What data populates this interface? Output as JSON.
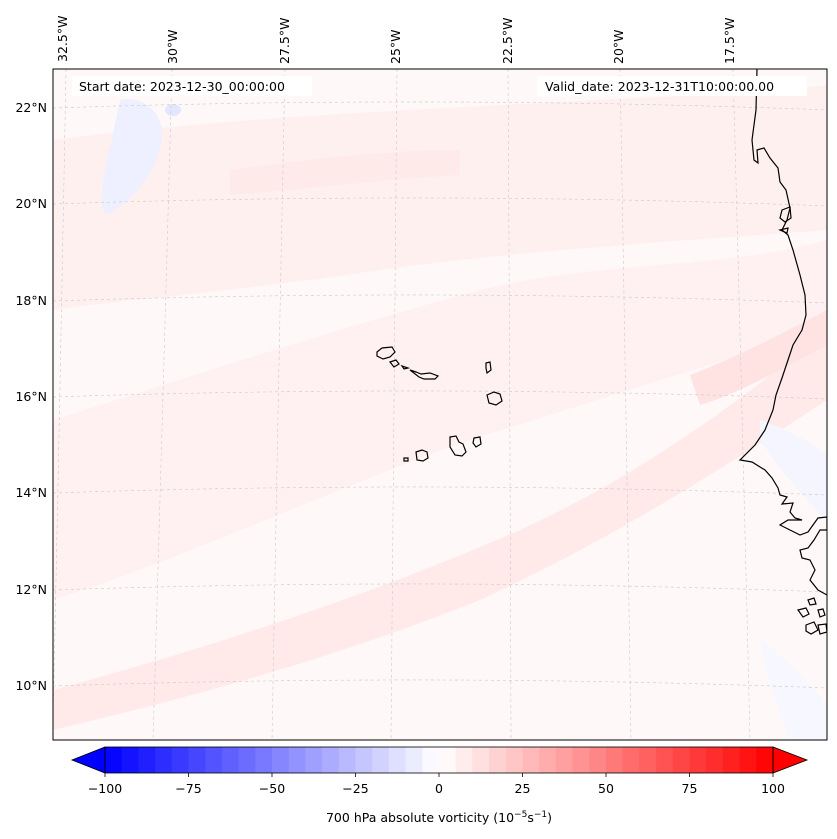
{
  "map": {
    "start_date": "Start date: 2023-12-30_00:00:00",
    "valid_date": "Valid_date: 2023-12-31T10:00:00.00",
    "lon_labels": [
      "32.5°W",
      "30°W",
      "27.5°W",
      "25°W",
      "22.5°W",
      "20°W",
      "17.5°W"
    ],
    "lat_labels": [
      "22°N",
      "20°N",
      "18°N",
      "16°N",
      "14°N",
      "12°N",
      "10°N"
    ],
    "field_name": "700 hPa absolute vorticity",
    "field_colors": {
      "pale_red": "#fff0f0",
      "light_red": "#ffdede",
      "light_blue": "#eef0ff",
      "background": "#fff8f8"
    }
  },
  "colorbar": {
    "label": "700 hPa absolute vorticity (10",
    "label_exp1": "−5",
    "label_mid": "s",
    "label_exp2": "−1",
    "label_end": ")",
    "min": -100,
    "max": 100,
    "step": 5,
    "ticks": [
      -100,
      -75,
      -50,
      -25,
      0,
      25,
      50,
      75,
      100
    ],
    "tick_labels": [
      "−100",
      "−75",
      "−50",
      "−25",
      "0",
      "25",
      "50",
      "75",
      "100"
    ],
    "cmap": "bwr"
  }
}
